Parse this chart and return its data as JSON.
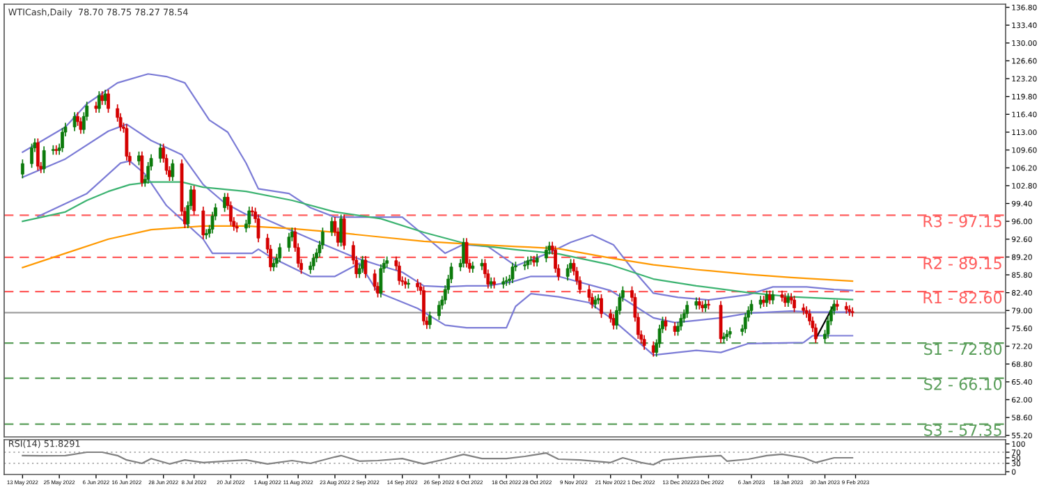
{
  "chart_data": [
    {
      "type": "candlestick",
      "title": "WTICash,Daily  78.70 78.75 78.27 78.54",
      "tick_labels": "y",
      "x": [
        "2022-05-13",
        "2022-05-16",
        "2022-05-17",
        "2022-05-18",
        "2022-05-19",
        "2022-05-20",
        "2022-05-23",
        "2022-05-24",
        "2022-05-25",
        "2022-05-26",
        "2022-05-27",
        "2022-05-30",
        "2022-05-31",
        "2022-06-01",
        "2022-06-02",
        "2022-06-03",
        "2022-06-06",
        "2022-06-07",
        "2022-06-08",
        "2022-06-09",
        "2022-06-10",
        "2022-06-13",
        "2022-06-14",
        "2022-06-15",
        "2022-06-16",
        "2022-06-17",
        "2022-06-20",
        "2022-06-21",
        "2022-06-22",
        "2022-06-23",
        "2022-06-24",
        "2022-06-27",
        "2022-06-28",
        "2022-06-29",
        "2022-06-30",
        "2022-07-01",
        "2022-07-04",
        "2022-07-05",
        "2022-07-06",
        "2022-07-07",
        "2022-07-08",
        "2022-07-11",
        "2022-07-12",
        "2022-07-13",
        "2022-07-14",
        "2022-07-15",
        "2022-07-18",
        "2022-07-19",
        "2022-07-20",
        "2022-07-21",
        "2022-07-22",
        "2022-07-25",
        "2022-07-26",
        "2022-07-27",
        "2022-07-28",
        "2022-07-29",
        "2022-08-01",
        "2022-08-02",
        "2022-08-03",
        "2022-08-04",
        "2022-08-05",
        "2022-08-08",
        "2022-08-09",
        "2022-08-10",
        "2022-08-11",
        "2022-08-12",
        "2022-08-15",
        "2022-08-16",
        "2022-08-17",
        "2022-08-18",
        "2022-08-19",
        "2022-08-22",
        "2022-08-23",
        "2022-08-24",
        "2022-08-25",
        "2022-08-26",
        "2022-08-29",
        "2022-08-30",
        "2022-08-31",
        "2022-09-01",
        "2022-09-02",
        "2022-09-05",
        "2022-09-06",
        "2022-09-07",
        "2022-09-08",
        "2022-09-09",
        "2022-09-12",
        "2022-09-13",
        "2022-09-14",
        "2022-09-15",
        "2022-09-16",
        "2022-09-19",
        "2022-09-20",
        "2022-09-21",
        "2022-09-22",
        "2022-09-23",
        "2022-09-26",
        "2022-09-27",
        "2022-09-28",
        "2022-09-29",
        "2022-09-30",
        "2022-10-03",
        "2022-10-04",
        "2022-10-05",
        "2022-10-06",
        "2022-10-07",
        "2022-10-10",
        "2022-10-11",
        "2022-10-12",
        "2022-10-13",
        "2022-10-14",
        "2022-10-17",
        "2022-10-18",
        "2022-10-19",
        "2022-10-20",
        "2022-10-21",
        "2022-10-24",
        "2022-10-25",
        "2022-10-26",
        "2022-10-27",
        "2022-10-28",
        "2022-10-31",
        "2022-11-01",
        "2022-11-02",
        "2022-11-03",
        "2022-11-04",
        "2022-11-07",
        "2022-11-08",
        "2022-11-09",
        "2022-11-10",
        "2022-11-11",
        "2022-11-14",
        "2022-11-15",
        "2022-11-16",
        "2022-11-17",
        "2022-11-18",
        "2022-11-21",
        "2022-11-22",
        "2022-11-23",
        "2022-11-24",
        "2022-11-25",
        "2022-11-28",
        "2022-11-29",
        "2022-11-30",
        "2022-12-01",
        "2022-12-02",
        "2022-12-05",
        "2022-12-06",
        "2022-12-07",
        "2022-12-08",
        "2022-12-09",
        "2022-12-12",
        "2022-12-13",
        "2022-12-14",
        "2022-12-15",
        "2022-12-16",
        "2022-12-19",
        "2022-12-20",
        "2022-12-21",
        "2022-12-22",
        "2022-12-23",
        "2022-12-27",
        "2022-12-28",
        "2022-12-29",
        "2022-12-30",
        "2023-01-03",
        "2023-01-04",
        "2023-01-05",
        "2023-01-06",
        "2023-01-09",
        "2023-01-10",
        "2023-01-11",
        "2023-01-12",
        "2023-01-13",
        "2023-01-16",
        "2023-01-17",
        "2023-01-18",
        "2023-01-19",
        "2023-01-20",
        "2023-01-23",
        "2023-01-24",
        "2023-01-25",
        "2023-01-26",
        "2023-01-27",
        "2023-01-30",
        "2023-01-31",
        "2023-02-01",
        "2023-02-02",
        "2023-02-03",
        "2023-02-06",
        "2023-02-07",
        "2023-02-08"
      ],
      "ohlc": [
        [
          105,
          107.8,
          104.2,
          107
        ],
        [
          107,
          110.8,
          106.2,
          110
        ],
        [
          110,
          111.8,
          109.2,
          111
        ],
        [
          111,
          111.8,
          105.7,
          106.5
        ],
        [
          106.5,
          107.3,
          105.2,
          106
        ],
        [
          106,
          110.3,
          105.2,
          109.5
        ],
        [
          109.5,
          110.5,
          108.7,
          109.7
        ],
        [
          109.7,
          110.5,
          108.7,
          109.5
        ],
        [
          109.5,
          110.8,
          108.7,
          110
        ],
        [
          110,
          113.8,
          109.2,
          113
        ],
        [
          113,
          114.8,
          112.2,
          114
        ],
        [
          114,
          116.8,
          113.2,
          116
        ],
        [
          116,
          116.8,
          114.2,
          115
        ],
        [
          115,
          115.8,
          112.7,
          113.5
        ],
        [
          113.5,
          116.8,
          112.7,
          116
        ],
        [
          116,
          118.8,
          115.2,
          118
        ],
        [
          118,
          118.8,
          116.7,
          117.5
        ],
        [
          117.5,
          120.8,
          116.7,
          120
        ],
        [
          120,
          120.8,
          118.2,
          119
        ],
        [
          119,
          121.1,
          118.2,
          120.3
        ],
        [
          120.3,
          121.1,
          116.7,
          117.5
        ],
        [
          117.5,
          118.3,
          115,
          115.8
        ],
        [
          115.8,
          116.6,
          113.2,
          114
        ],
        [
          114,
          114.8,
          112.9,
          113.7
        ],
        [
          113.7,
          114.5,
          107.6,
          108.4
        ],
        [
          108.4,
          109.2,
          106.7,
          107.5
        ],
        [
          107.5,
          109.3,
          106.7,
          108.5
        ],
        [
          108.5,
          109.3,
          102.6,
          103.4
        ],
        [
          103.4,
          104.8,
          102.6,
          104
        ],
        [
          104,
          107.3,
          103.2,
          106.5
        ],
        [
          106.5,
          108.8,
          105.7,
          108
        ],
        [
          108,
          110.8,
          107.2,
          110
        ],
        [
          110,
          110.8,
          107.2,
          108
        ],
        [
          108,
          108.8,
          104.9,
          105.7
        ],
        [
          105.7,
          106.5,
          103.7,
          104.5
        ],
        [
          104.5,
          107.8,
          103.7,
          107
        ],
        [
          107,
          107.8,
          97.1,
          97.9
        ],
        [
          97.9,
          98.7,
          94.7,
          95.5
        ],
        [
          95.5,
          99.8,
          94.7,
          99
        ],
        [
          99,
          102.8,
          98.2,
          102
        ],
        [
          102,
          102.8,
          97.2,
          98
        ],
        [
          98,
          98.8,
          92.6,
          93.4
        ],
        [
          93.4,
          94.5,
          92.6,
          93.7
        ],
        [
          93.7,
          95.3,
          92.9,
          94.5
        ],
        [
          94.5,
          97.8,
          93.7,
          97
        ],
        [
          97,
          99.4,
          96.2,
          98.6
        ],
        [
          98.6,
          101.4,
          97.8,
          100.6
        ],
        [
          100.6,
          101.4,
          98.2,
          99
        ],
        [
          99,
          99.8,
          95.2,
          96
        ],
        [
          96,
          96.8,
          94.2,
          95
        ],
        [
          95,
          95.8,
          93.9,
          94.7
        ],
        [
          94.7,
          96.3,
          93.9,
          95.5
        ],
        [
          95.5,
          98.8,
          94.7,
          98
        ],
        [
          98,
          98.8,
          97,
          97.8
        ],
        [
          97.8,
          98.6,
          95.7,
          96.5
        ],
        [
          96.5,
          97.3,
          92,
          92.8
        ],
        [
          92.8,
          93.6,
          89.9,
          90.7
        ],
        [
          90.7,
          91.5,
          86.5,
          87.3
        ],
        [
          87.3,
          88.8,
          86.5,
          88
        ],
        [
          88,
          89.8,
          87.2,
          89
        ],
        [
          89,
          91.8,
          88.2,
          91
        ],
        [
          91,
          93.8,
          90.2,
          93
        ],
        [
          93,
          94.8,
          92.2,
          94
        ],
        [
          94,
          94.8,
          90.2,
          91
        ],
        [
          91,
          91.8,
          87.2,
          88
        ],
        [
          88,
          88.8,
          86,
          86.8
        ],
        [
          86.8,
          88.3,
          86,
          87.5
        ],
        [
          87.5,
          89.8,
          86.7,
          89
        ],
        [
          89,
          90.8,
          88.2,
          90
        ],
        [
          90,
          92.3,
          89.2,
          91.5
        ],
        [
          91.5,
          94.8,
          90.7,
          94
        ],
        [
          94,
          96.8,
          93.2,
          96
        ],
        [
          96,
          96.8,
          93.2,
          94
        ],
        [
          94,
          94.8,
          91.2,
          92
        ],
        [
          92,
          97.3,
          91.2,
          96.5
        ],
        [
          96.5,
          97.3,
          90.6,
          91.4
        ],
        [
          91.4,
          92.2,
          87.8,
          88.6
        ],
        [
          88.6,
          89.4,
          85.2,
          86
        ],
        [
          86,
          87.8,
          85.2,
          87
        ],
        [
          87,
          89.4,
          86.2,
          88.6
        ],
        [
          88.6,
          89.4,
          85.2,
          86
        ],
        [
          86,
          86.8,
          82.8,
          83.6
        ],
        [
          83.6,
          84.4,
          81.5,
          82.3
        ],
        [
          82.3,
          87.8,
          81.5,
          87
        ],
        [
          87,
          88.8,
          86.2,
          88
        ],
        [
          88,
          89.3,
          87.2,
          88.5
        ],
        [
          88.5,
          89.3,
          86.7,
          87.5
        ],
        [
          87.5,
          88.3,
          83.9,
          84.7
        ],
        [
          84.7,
          85.5,
          83.7,
          84.5
        ],
        [
          84.5,
          85.3,
          83.2,
          84
        ],
        [
          84,
          85,
          83.2,
          84.2
        ],
        [
          84.2,
          85,
          82.7,
          83.5
        ],
        [
          83.5,
          84.3,
          82,
          82.8
        ],
        [
          82.8,
          83.6,
          76.2,
          77
        ],
        [
          77,
          77.8,
          75.5,
          76.3
        ],
        [
          76.3,
          78.8,
          75.5,
          78
        ],
        [
          78,
          80.8,
          77.2,
          80
        ],
        [
          80,
          81.8,
          79.2,
          81
        ],
        [
          81,
          83.8,
          80.2,
          83
        ],
        [
          83,
          85.8,
          82.2,
          85
        ],
        [
          85,
          88.1,
          84.2,
          87.3
        ],
        [
          87.3,
          88.8,
          86.5,
          88
        ],
        [
          88,
          92.8,
          87.2,
          92
        ],
        [
          92,
          92.8,
          87.2,
          88
        ],
        [
          88,
          88.8,
          86.2,
          87
        ],
        [
          87,
          88.3,
          86.2,
          87.5
        ],
        [
          87.5,
          88.8,
          86.7,
          88
        ],
        [
          88,
          88.8,
          85.2,
          86
        ],
        [
          86,
          86.8,
          83.2,
          84
        ],
        [
          84,
          85.3,
          83.2,
          84.5
        ],
        [
          84.5,
          85.3,
          83.2,
          84
        ],
        [
          84,
          85.3,
          83.2,
          84.5
        ],
        [
          84.5,
          85.5,
          83.7,
          84.7
        ],
        [
          84.7,
          85.8,
          83.9,
          85
        ],
        [
          85,
          88.1,
          84.2,
          87.3
        ],
        [
          87.3,
          88.3,
          86.5,
          87.5
        ],
        [
          87.5,
          88.5,
          86.7,
          87.7
        ],
        [
          87.7,
          89.3,
          86.9,
          88.5
        ],
        [
          88.5,
          89.4,
          87.7,
          88.6
        ],
        [
          88.6,
          89.4,
          87.4,
          88.2
        ],
        [
          88.2,
          89.8,
          87.4,
          89
        ],
        [
          89,
          91.3,
          88.2,
          90.5
        ],
        [
          90.5,
          92.1,
          89.7,
          91.3
        ],
        [
          91.3,
          92.1,
          89.7,
          90.5
        ],
        [
          90.5,
          91.3,
          86.2,
          87
        ],
        [
          87,
          87.8,
          84.7,
          85.5
        ],
        [
          85.5,
          87.8,
          84.7,
          87
        ],
        [
          87,
          88.8,
          86.2,
          88
        ],
        [
          88,
          88.8,
          85.7,
          86.5
        ],
        [
          86.5,
          87.3,
          83.9,
          84.7
        ],
        [
          84.7,
          85.5,
          82.2,
          83
        ],
        [
          83,
          83.8,
          80.7,
          81.5
        ],
        [
          81.5,
          82.3,
          79.4,
          80.2
        ],
        [
          80.2,
          81.8,
          79.4,
          81
        ],
        [
          81,
          82.1,
          80.2,
          81.3
        ],
        [
          81.3,
          82.1,
          77.6,
          78.4
        ],
        [
          78.4,
          79.2,
          76.7,
          77.5
        ],
        [
          77.5,
          78.3,
          75.4,
          76.2
        ],
        [
          76.2,
          79.8,
          75.4,
          79
        ],
        [
          79,
          82.3,
          78.2,
          81.5
        ],
        [
          81.5,
          83.6,
          80.7,
          82.8
        ],
        [
          82.8,
          83.6,
          80.7,
          81.5
        ],
        [
          81.5,
          82.3,
          76.9,
          77.7
        ],
        [
          77.7,
          78.5,
          73.6,
          74.4
        ],
        [
          74.4,
          75.2,
          72.7,
          73.5
        ],
        [
          73.5,
          74.3,
          71.5,
          72.3
        ],
        [
          72.3,
          73.1,
          70.2,
          71
        ],
        [
          71,
          73.5,
          70.2,
          72.7
        ],
        [
          72.7,
          76.3,
          71.9,
          75.5
        ],
        [
          75.5,
          77.8,
          74.7,
          77
        ],
        [
          77,
          77.8,
          75.2,
          76
        ],
        [
          76,
          76.8,
          74.2,
          75
        ],
        [
          75,
          76.8,
          74.2,
          76
        ],
        [
          76,
          78.3,
          75.2,
          77.5
        ],
        [
          77.5,
          79.2,
          76.7,
          78.4
        ],
        [
          78.4,
          80.8,
          77.6,
          80
        ],
        [
          80,
          81.5,
          79.2,
          80.7
        ],
        [
          80.7,
          81.5,
          79.2,
          80
        ],
        [
          80,
          80.8,
          78.7,
          79.5
        ],
        [
          79.5,
          81,
          78.7,
          80.2
        ],
        [
          80.2,
          81,
          79.2,
          80
        ],
        [
          80,
          80.8,
          72.8,
          73.6
        ],
        [
          73.6,
          74.8,
          72.8,
          74
        ],
        [
          74,
          75.3,
          73.2,
          74.5
        ],
        [
          74.5,
          75.8,
          73.7,
          75
        ],
        [
          75,
          76.3,
          74.2,
          75.5
        ],
        [
          75.5,
          78.5,
          74.7,
          77.7
        ],
        [
          77.7,
          79.8,
          76.9,
          79
        ],
        [
          79,
          81,
          78.2,
          80.2
        ],
        [
          80.2,
          81.8,
          79.4,
          81
        ],
        [
          81,
          81.8,
          79.7,
          80.5
        ],
        [
          80.5,
          82.8,
          79.7,
          82
        ],
        [
          82,
          82.8,
          80.2,
          81
        ],
        [
          81,
          82.8,
          80.2,
          82
        ],
        [
          82,
          82.8,
          80.7,
          81.5
        ],
        [
          81.5,
          82.3,
          79.7,
          80.5
        ],
        [
          80.5,
          82.3,
          79.7,
          81.5
        ],
        [
          81.5,
          82.3,
          80.2,
          81
        ],
        [
          81,
          81.8,
          78.7,
          79.5
        ],
        [
          79.5,
          80.3,
          78.2,
          79
        ],
        [
          79,
          79.8,
          77.6,
          78.4
        ],
        [
          78.4,
          79.2,
          76.2,
          77
        ],
        [
          77,
          77.8,
          74.9,
          75.7
        ],
        [
          75.7,
          76.5,
          72.8,
          73.6
        ],
        [
          73.6,
          75.3,
          72.8,
          74.5
        ],
        [
          74.5,
          77.8,
          73.7,
          77
        ],
        [
          77,
          79.8,
          76.2,
          79
        ],
        [
          79,
          81,
          78.2,
          80.2
        ],
        [
          80.2,
          81,
          79,
          79.8
        ],
        [
          79.8,
          80.6,
          78.4,
          79.2
        ],
        [
          79.2,
          80,
          78,
          78.8
        ],
        [
          78.8,
          79.6,
          77.8,
          78.6
        ]
      ],
      "colors": [
        "#0b7a0b",
        "#0b7a0b",
        "#0b7a0b",
        "#d40000",
        "#d40000",
        "#0b7a0b",
        "#0b7a0b",
        "#d40000",
        "#0b7a0b",
        "#0b7a0b",
        "#0b7a0b",
        "#0b7a0b",
        "#d40000",
        "#d40000",
        "#0b7a0b",
        "#0b7a0b",
        "#d40000",
        "#0b7a0b",
        "#d40000",
        "#0b7a0b",
        "#d40000",
        "#d40000",
        "#d40000",
        "#d40000",
        "#d40000",
        "#d40000",
        "#0b7a0b",
        "#d40000",
        "#0b7a0b",
        "#0b7a0b",
        "#0b7a0b",
        "#0b7a0b",
        "#d40000",
        "#d40000",
        "#d40000",
        "#0b7a0b",
        "#d40000",
        "#d40000",
        "#0b7a0b",
        "#0b7a0b",
        "#d40000",
        "#d40000",
        "#0b7a0b",
        "#0b7a0b",
        "#0b7a0b",
        "#0b7a0b",
        "#0b7a0b",
        "#d40000",
        "#d40000",
        "#d40000",
        "#d40000",
        "#0b7a0b",
        "#0b7a0b",
        "#d40000",
        "#d40000",
        "#d40000",
        "#d40000",
        "#d40000",
        "#0b7a0b",
        "#0b7a0b",
        "#0b7a0b",
        "#0b7a0b",
        "#0b7a0b",
        "#d40000",
        "#d40000",
        "#d40000",
        "#0b7a0b",
        "#0b7a0b",
        "#0b7a0b",
        "#0b7a0b",
        "#0b7a0b",
        "#0b7a0b",
        "#d40000",
        "#d40000",
        "#0b7a0b",
        "#d40000",
        "#d40000",
        "#d40000",
        "#0b7a0b",
        "#0b7a0b",
        "#d40000",
        "#d40000",
        "#d40000",
        "#0b7a0b",
        "#0b7a0b",
        "#0b7a0b",
        "#d40000",
        "#d40000",
        "#d40000",
        "#d40000",
        "#0b7a0b",
        "#d40000",
        "#d40000",
        "#d40000",
        "#d40000",
        "#0b7a0b",
        "#0b7a0b",
        "#0b7a0b",
        "#0b7a0b",
        "#0b7a0b",
        "#0b7a0b",
        "#0b7a0b",
        "#0b7a0b",
        "#d40000",
        "#d40000",
        "#0b7a0b",
        "#0b7a0b",
        "#d40000",
        "#d40000",
        "#0b7a0b",
        "#d40000",
        "#0b7a0b",
        "#0b7a0b",
        "#0b7a0b",
        "#0b7a0b",
        "#0b7a0b",
        "#0b7a0b",
        "#0b7a0b",
        "#0b7a0b",
        "#d40000",
        "#0b7a0b",
        "#0b7a0b",
        "#0b7a0b",
        "#d40000",
        "#d40000",
        "#d40000",
        "#0b7a0b",
        "#0b7a0b",
        "#d40000",
        "#d40000",
        "#d40000",
        "#d40000",
        "#d40000",
        "#0b7a0b",
        "#0b7a0b",
        "#d40000",
        "#d40000",
        "#d40000",
        "#0b7a0b",
        "#0b7a0b",
        "#0b7a0b",
        "#d40000",
        "#d40000",
        "#d40000",
        "#d40000",
        "#d40000",
        "#d40000",
        "#0b7a0b",
        "#0b7a0b",
        "#0b7a0b",
        "#d40000",
        "#d40000",
        "#0b7a0b",
        "#0b7a0b",
        "#0b7a0b",
        "#0b7a0b",
        "#0b7a0b",
        "#d40000",
        "#d40000",
        "#0b7a0b",
        "#d40000",
        "#d40000",
        "#0b7a0b",
        "#0b7a0b",
        "#0b7a0b",
        "#0b7a0b",
        "#0b7a0b",
        "#0b7a0b",
        "#0b7a0b",
        "#0b7a0b",
        "#d40000",
        "#0b7a0b",
        "#d40000",
        "#0b7a0b",
        "#d40000",
        "#d40000",
        "#0b7a0b",
        "#d40000",
        "#d40000",
        "#d40000",
        "#d40000",
        "#d40000",
        "#d40000",
        "#d40000",
        "#0b7a0b",
        "#0b7a0b",
        "#0b7a0b",
        "#0b7a0b",
        "#d40000",
        "#d40000",
        "#d40000",
        "#d40000"
      ],
      "series": [
        {
          "type": "line",
          "color": "#7b7bd6",
          "x": [
            "2022-05-13",
            "2022-05-27",
            "2022-06-03",
            "2022-06-13",
            "2022-06-23",
            "2022-06-29",
            "2022-07-05",
            "2022-07-13",
            "2022-07-19",
            "2022-07-25",
            "2022-07-29",
            "2022-08-08",
            "2022-08-15",
            "2022-08-23",
            "2022-09-02",
            "2022-09-14",
            "2022-09-21",
            "2022-09-28",
            "2022-10-04",
            "2022-10-12",
            "2022-10-21",
            "2022-11-01",
            "2022-11-08",
            "2022-11-15",
            "2022-11-22",
            "2022-11-28",
            "2022-12-05",
            "2022-12-13",
            "2022-12-23",
            "2023-01-05",
            "2023-01-13",
            "2023-01-24",
            "2023-02-02",
            "2023-02-08"
          ],
          "values": [
            109.2,
            114,
            118.4,
            122.4,
            124.1,
            123.6,
            122.4,
            115.3,
            113,
            107.1,
            102.2,
            101.3,
            98.6,
            96.8,
            96.8,
            96.8,
            93.4,
            89.9,
            91.6,
            91.2,
            87.5,
            90,
            92,
            93.4,
            91.5,
            87,
            82.3,
            81.5,
            81,
            82,
            83.5,
            83.5,
            83,
            82.8
          ]
        },
        {
          "type": "line",
          "color": "#7b7bd6",
          "x": [
            "2022-05-13",
            "2022-05-27",
            "2022-06-10",
            "2022-06-16",
            "2022-06-24",
            "2022-07-04",
            "2022-07-11",
            "2022-07-18",
            "2022-07-25",
            "2022-07-29",
            "2022-08-09",
            "2022-08-16",
            "2022-08-23",
            "2022-08-30",
            "2022-09-06",
            "2022-09-14",
            "2022-09-21",
            "2022-09-28",
            "2022-10-05",
            "2022-10-12",
            "2022-10-20",
            "2022-10-26",
            "2022-11-04",
            "2022-11-21",
            "2022-11-28",
            "2022-12-05",
            "2022-12-12",
            "2022-12-19",
            "2022-12-27",
            "2023-01-05",
            "2023-01-19",
            "2023-01-26",
            "2023-02-08"
          ],
          "values": [
            104.4,
            107.9,
            113.2,
            114.5,
            111.4,
            108.7,
            103,
            99.5,
            97.3,
            97,
            94.2,
            92.4,
            90.7,
            89,
            87.7,
            86.3,
            83.7,
            83.5,
            83.7,
            83.7,
            84.5,
            85.5,
            85.5,
            82.8,
            80.2,
            77.6,
            76.7,
            77.1,
            77.6,
            78.5,
            78.9,
            78.7,
            78.7
          ]
        },
        {
          "type": "line",
          "color": "#7b7bd6",
          "x": [
            "2022-05-18",
            "2022-06-03",
            "2022-06-14",
            "2022-06-17",
            "2022-06-22",
            "2022-06-29",
            "2022-07-11",
            "2022-07-14",
            "2022-07-27",
            "2022-07-29",
            "2022-08-02",
            "2022-08-15",
            "2022-08-23",
            "2022-08-31",
            "2022-09-06",
            "2022-09-19",
            "2022-09-28",
            "2022-10-05",
            "2022-10-18",
            "2022-10-21",
            "2022-10-26",
            "2022-11-04",
            "2022-11-14",
            "2022-11-21",
            "2022-12-05",
            "2022-12-19",
            "2022-12-27",
            "2023-01-05",
            "2023-01-23",
            "2023-01-26",
            "2023-02-08"
          ],
          "values": [
            96.9,
            101.3,
            107.1,
            107.5,
            105,
            99,
            92.6,
            89.9,
            89.9,
            90.7,
            89.2,
            85.5,
            85.5,
            88,
            82.5,
            79.4,
            76.2,
            75.7,
            75.7,
            79.8,
            82.2,
            81.6,
            80.5,
            77.6,
            70.5,
            71.4,
            71,
            72.7,
            72.9,
            74.2,
            74.2
          ]
        },
        {
          "type": "line",
          "color": "#3cb371",
          "x": [
            "2022-05-13",
            "2022-05-27",
            "2022-06-03",
            "2022-06-10",
            "2022-06-17",
            "2022-06-24",
            "2022-07-04",
            "2022-07-11",
            "2022-07-25",
            "2022-08-09",
            "2022-08-23",
            "2022-09-07",
            "2022-09-21",
            "2022-10-05",
            "2022-10-21",
            "2022-11-04",
            "2022-11-21",
            "2022-12-05",
            "2022-12-19",
            "2023-01-05",
            "2023-01-19",
            "2023-02-08"
          ],
          "values": [
            96,
            97.8,
            100,
            101.7,
            103,
            103.5,
            103.5,
            102.5,
            101.7,
            100,
            97.8,
            96.5,
            93.9,
            91.7,
            90.6,
            89.8,
            87.7,
            85,
            83.7,
            82.4,
            81.6,
            81.1
          ]
        },
        {
          "type": "line",
          "color": "#ff9900",
          "x": [
            "2022-05-13",
            "2022-05-27",
            "2022-06-10",
            "2022-06-24",
            "2022-07-11",
            "2022-07-25",
            "2022-08-09",
            "2022-08-23",
            "2022-09-07",
            "2022-09-21",
            "2022-10-05",
            "2022-10-21",
            "2022-11-04",
            "2022-11-21",
            "2022-12-05",
            "2022-12-19",
            "2023-01-05",
            "2023-01-19",
            "2023-02-08"
          ],
          "values": [
            87.2,
            89.9,
            92.6,
            94.4,
            95.1,
            95.1,
            94.6,
            93.9,
            93,
            92.2,
            91.7,
            91.2,
            90.8,
            89,
            87.7,
            86.8,
            85.9,
            85.3,
            84.6
          ]
        },
        {
          "type": "line",
          "color": "#000000",
          "x": [
            "2023-01-27",
            "2023-02-02"
          ],
          "values": [
            73.6,
            80.2
          ]
        }
      ],
      "xlim": [
        "2022-05-07",
        "2023-03-30"
      ],
      "ylim": [
        54.9,
        137.4
      ],
      "yticks": [
        {
          "value": 55.2,
          "label": "55.20"
        },
        {
          "value": 58.6,
          "label": "58.60"
        },
        {
          "value": 62.0,
          "label": "62.00"
        },
        {
          "value": 65.4,
          "label": "65.40"
        },
        {
          "value": 68.8,
          "label": "68.80"
        },
        {
          "value": 72.2,
          "label": "72.20"
        },
        {
          "value": 75.6,
          "label": "75.60"
        },
        {
          "value": 79.0,
          "label": "79.00"
        },
        {
          "value": 82.4,
          "label": "82.40"
        },
        {
          "value": 85.8,
          "label": "85.80"
        },
        {
          "value": 89.2,
          "label": "89.20"
        },
        {
          "value": 92.6,
          "label": "92.60"
        },
        {
          "value": 96.0,
          "label": "96.00"
        },
        {
          "value": 99.4,
          "label": "99.40"
        },
        {
          "value": 102.8,
          "label": "102.80"
        },
        {
          "value": 106.2,
          "label": "106.20"
        },
        {
          "value": 109.6,
          "label": "109.60"
        },
        {
          "value": 113.0,
          "label": "113.00"
        },
        {
          "value": 116.4,
          "label": "116.40"
        },
        {
          "value": 119.8,
          "label": "119.80"
        },
        {
          "value": 123.2,
          "label": "123.20"
        },
        {
          "value": 126.6,
          "label": "126.60"
        },
        {
          "value": 130.0,
          "label": "130.00"
        },
        {
          "value": 133.4,
          "label": "133.40"
        },
        {
          "value": 136.8,
          "label": "136.80"
        }
      ],
      "ref_lines": [
        {
          "axis": "y",
          "value": 97.15,
          "label": "R3 - 97.15",
          "color": "#ff5c5c",
          "line_style": "dashed"
        },
        {
          "axis": "y",
          "value": 89.15,
          "label": "R2 - 89.15",
          "color": "#ff5c5c",
          "line_style": "dashed"
        },
        {
          "axis": "y",
          "value": 82.6,
          "label": "R1 - 82.60",
          "color": "#ff5c5c",
          "line_style": "dashed"
        },
        {
          "axis": "y",
          "value": 78.6,
          "color": "#a0a0a0",
          "line_style": "solid"
        },
        {
          "axis": "y",
          "value": 72.8,
          "label": "S1 - 72.80",
          "color": "#5a9e5a",
          "line_style": "dashed"
        },
        {
          "axis": "y",
          "value": 66.1,
          "label": "S2 - 66.10",
          "color": "#5a9e5a",
          "line_style": "dashed"
        },
        {
          "axis": "y",
          "value": 57.35,
          "label": "S3 - 57.35",
          "color": "#5a9e5a",
          "line_style": "dashed"
        }
      ]
    },
    {
      "type": "line",
      "title": "RSI(14) 51.8291",
      "series": [
        {
          "color": "#808080",
          "x": [
            "2022-05-13",
            "2022-05-19",
            "2022-05-27",
            "2022-06-03",
            "2022-06-08",
            "2022-06-13",
            "2022-06-16",
            "2022-06-21",
            "2022-06-24",
            "2022-06-30",
            "2022-07-05",
            "2022-07-11",
            "2022-07-18",
            "2022-07-25",
            "2022-08-01",
            "2022-08-09",
            "2022-08-15",
            "2022-08-23",
            "2022-08-25",
            "2022-08-31",
            "2022-09-06",
            "2022-09-14",
            "2022-09-21",
            "2022-09-28",
            "2022-10-04",
            "2022-10-10",
            "2022-10-18",
            "2022-10-24",
            "2022-10-31",
            "2022-11-04",
            "2022-11-11",
            "2022-11-21",
            "2022-11-25",
            "2022-12-01",
            "2022-12-05",
            "2022-12-08",
            "2022-12-19",
            "2022-12-27",
            "2022-12-29",
            "2023-01-05",
            "2023-01-11",
            "2023-01-16",
            "2023-01-23",
            "2023-01-27",
            "2023-02-02",
            "2023-02-08"
          ],
          "values": [
            58,
            57,
            58,
            70,
            70,
            58,
            42,
            30,
            47,
            28,
            42,
            33,
            38,
            42,
            28,
            40,
            30,
            53,
            58,
            38,
            40,
            47,
            28,
            45,
            62,
            47,
            47,
            55,
            67,
            45,
            42,
            33,
            50,
            33,
            25,
            42,
            53,
            58,
            38,
            45,
            58,
            63,
            50,
            33,
            50,
            50
          ]
        }
      ],
      "xlim": [
        "2022-05-07",
        "2023-03-30"
      ],
      "ylim": [
        -10,
        115
      ],
      "yticks": [
        0,
        30,
        50,
        70,
        100
      ],
      "xticks": [
        {
          "value": "2022-05-13",
          "label": "13 May 2022"
        },
        {
          "value": "2022-05-25",
          "label": "25 May 2022"
        },
        {
          "value": "2022-06-06",
          "label": "6 Jun 2022"
        },
        {
          "value": "2022-06-16",
          "label": "16 Jun 2022"
        },
        {
          "value": "2022-06-28",
          "label": "28 Jun 2022"
        },
        {
          "value": "2022-07-08",
          "label": "8 Jul 2022"
        },
        {
          "value": "2022-07-20",
          "label": "20 Jul 2022"
        },
        {
          "value": "2022-08-01",
          "label": "1 Aug 2022"
        },
        {
          "value": "2022-08-11",
          "label": "11 Aug 2022"
        },
        {
          "value": "2022-08-23",
          "label": "23 Aug 2022"
        },
        {
          "value": "2022-09-02",
          "label": "2 Sep 2022"
        },
        {
          "value": "2022-09-14",
          "label": "14 Sep 2022"
        },
        {
          "value": "2022-09-26",
          "label": "26 Sep 2022"
        },
        {
          "value": "2022-10-06",
          "label": "6 Oct 2022"
        },
        {
          "value": "2022-10-18",
          "label": "18 Oct 2022"
        },
        {
          "value": "2022-10-28",
          "label": "28 Oct 2022"
        },
        {
          "value": "2022-11-09",
          "label": "9 Nov 2022"
        },
        {
          "value": "2022-11-21",
          "label": "21 Nov 2022"
        },
        {
          "value": "2022-12-01",
          "label": "1 Dec 2022"
        },
        {
          "value": "2022-12-13",
          "label": "13 Dec 2022"
        },
        {
          "value": "2022-12-23",
          "label": "23 Dec 2022"
        },
        {
          "value": "2023-01-06",
          "label": "6 Jan 2023"
        },
        {
          "value": "2023-01-18",
          "label": "18 Jan 2023"
        },
        {
          "value": "2023-01-30",
          "label": "30 Jan 2023"
        },
        {
          "value": "2023-02-09",
          "label": "9 Feb 2023"
        }
      ],
      "ref_lines": [
        {
          "axis": "y",
          "value": 70,
          "color": "#b0b0b0",
          "line_style": "dotted"
        },
        {
          "axis": "y",
          "value": 30,
          "color": "#b0b0b0",
          "line_style": "dotted"
        }
      ]
    }
  ]
}
